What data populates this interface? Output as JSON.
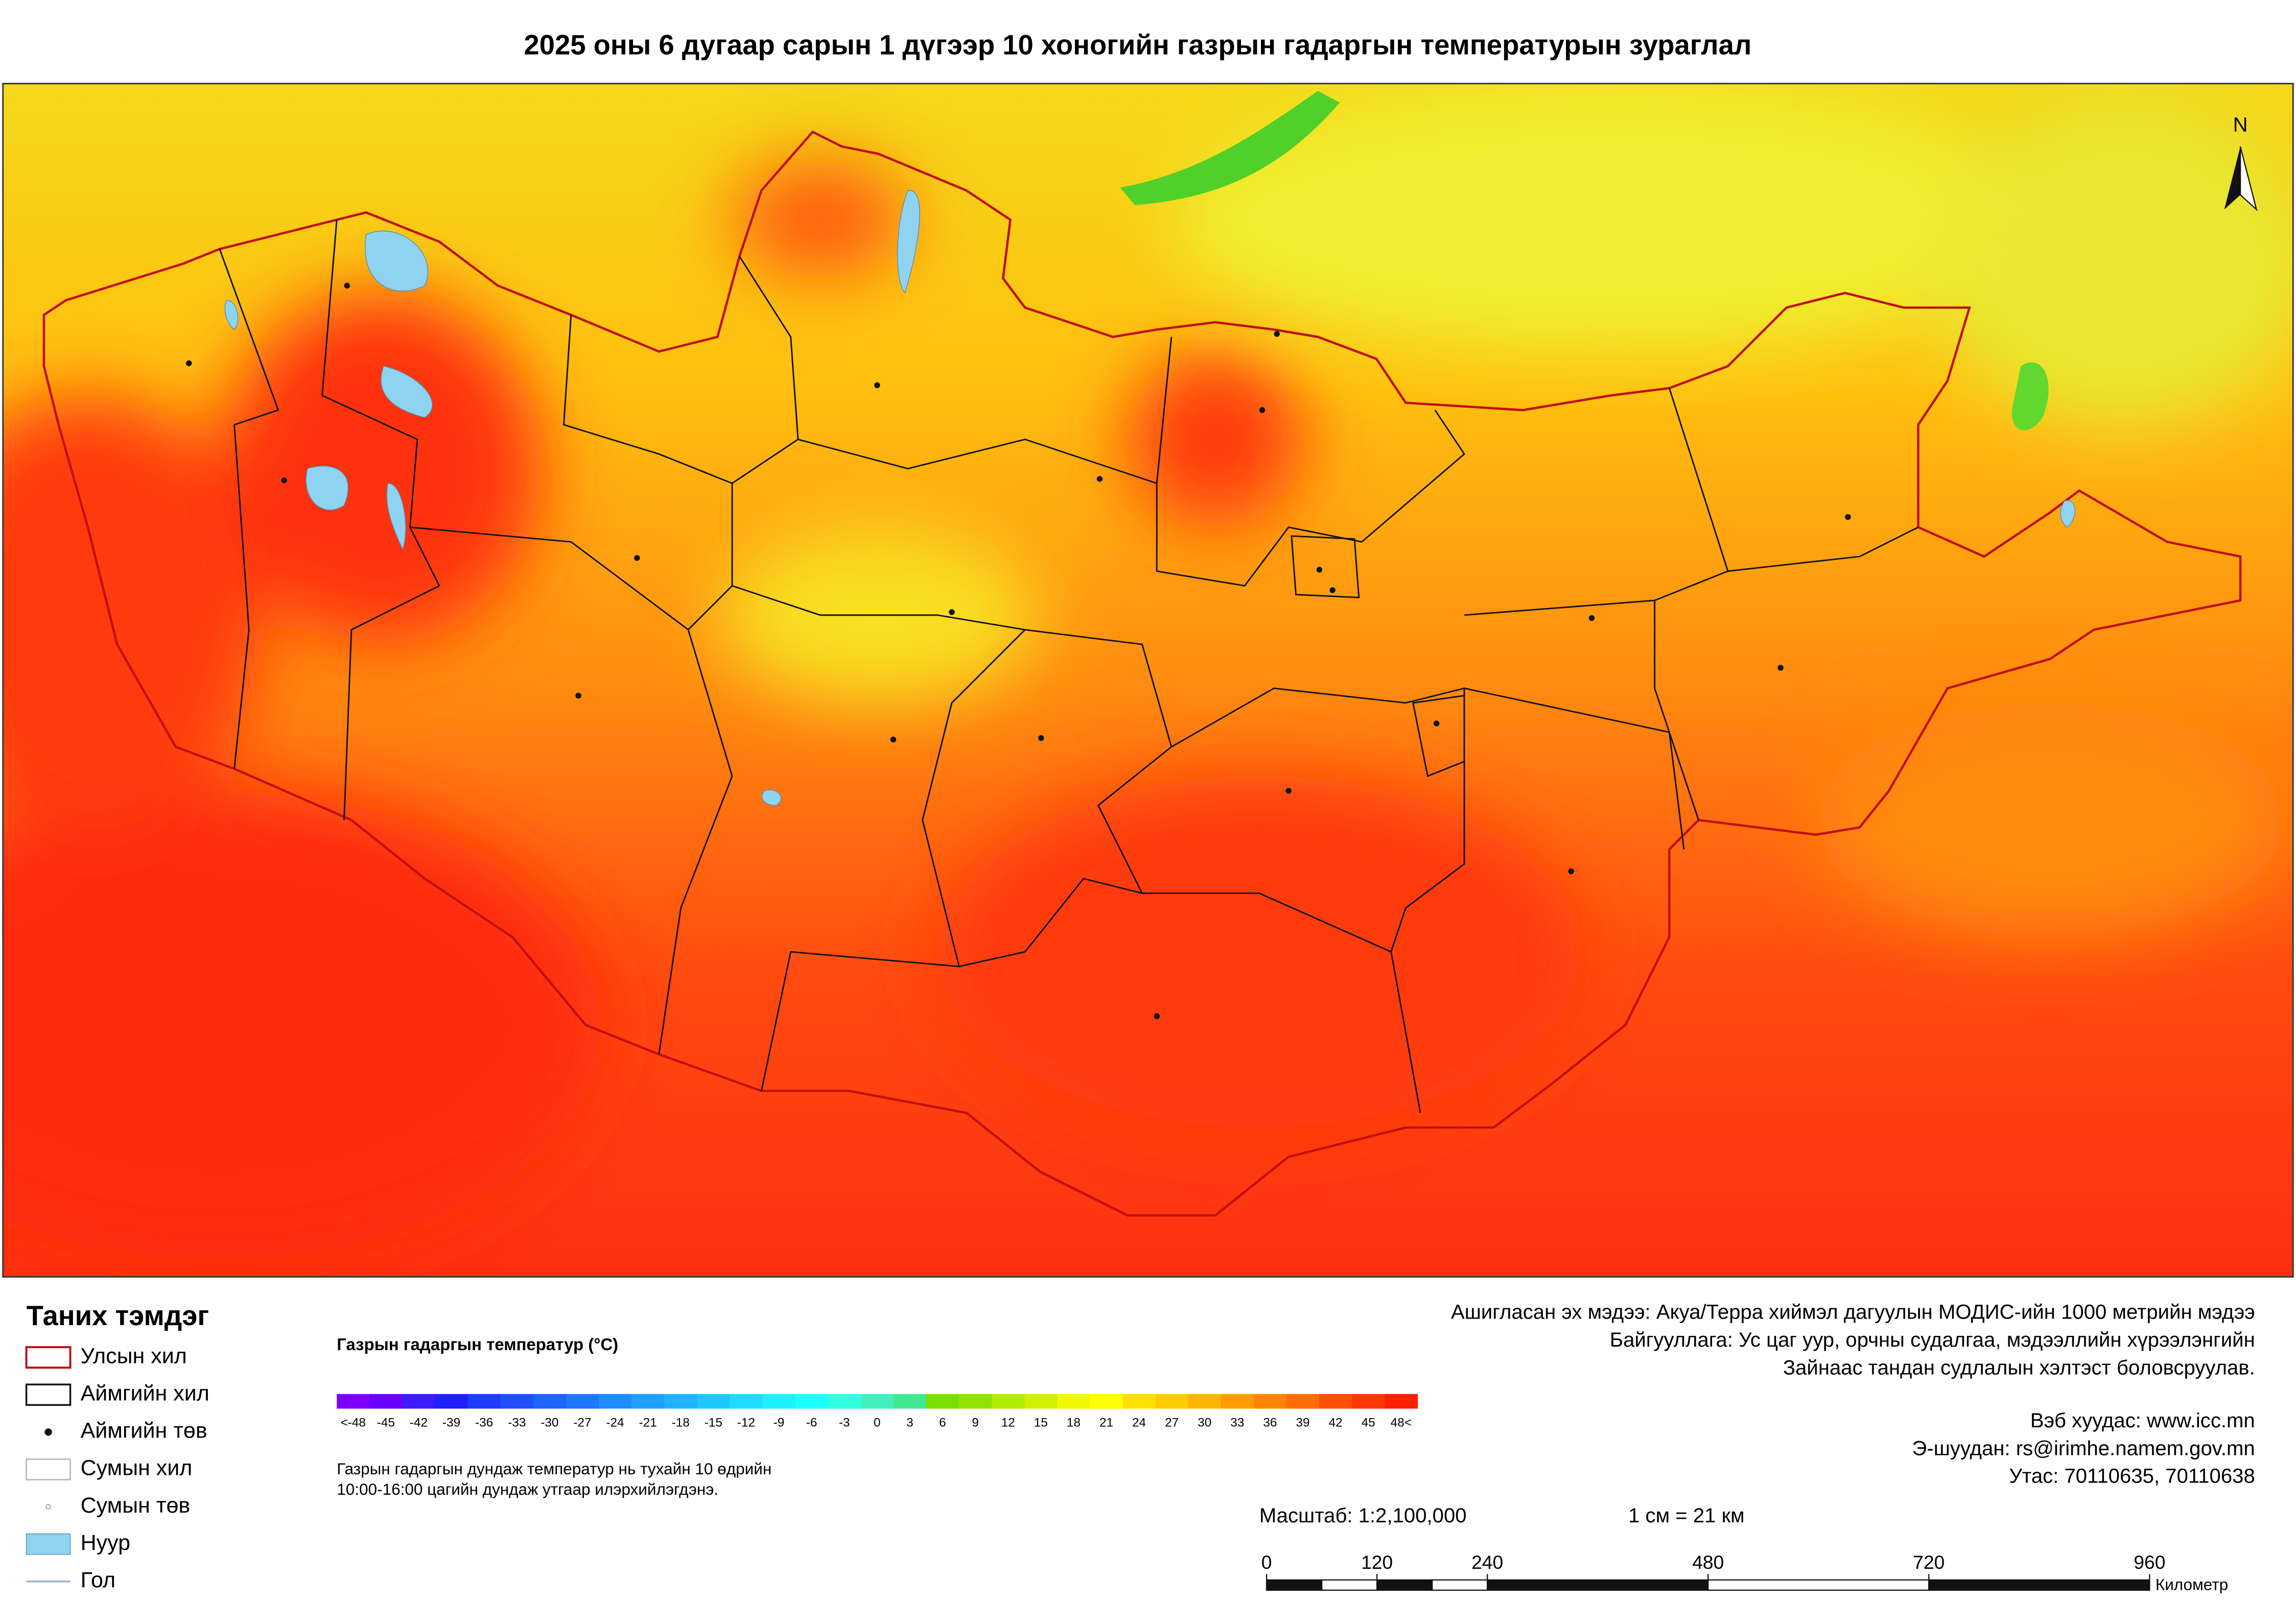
{
  "header": {
    "title": "2025 оны 6 дугаар сарын 1 дүгээр 10 хоногийн газрын гадаргын температурын зураглал"
  },
  "map": {
    "north": "N"
  },
  "legend": {
    "title": "Таних тэмдэг",
    "items": [
      "Улсын хил",
      "Аймгийн хил",
      "Аймгийн төв",
      "Сумын хил",
      "Сумын төв",
      "Нуур",
      "Гол"
    ]
  },
  "colorbar": {
    "title": "Газрын гадаргын температур (°C)",
    "labels": [
      "<-48",
      "-45",
      "-42",
      "-39",
      "-36",
      "-33",
      "-30",
      "-27",
      "-24",
      "-21",
      "-18",
      "-15",
      "-12",
      "-9",
      "-6",
      "-3",
      "0",
      "3",
      "6",
      "9",
      "12",
      "15",
      "18",
      "21",
      "24",
      "27",
      "30",
      "33",
      "36",
      "39",
      "42",
      "45",
      "48<"
    ],
    "colors": [
      "#8000ff",
      "#6a00ff",
      "#3c1cff",
      "#2020ff",
      "#1e3cff",
      "#1e50ff",
      "#1e64ff",
      "#1e78ff",
      "#1e8cff",
      "#1ea0ff",
      "#1eb4ff",
      "#1ec8ff",
      "#1edcff",
      "#1ef0ff",
      "#1effff",
      "#30ffe0",
      "#40f0c0",
      "#40e890",
      "#7ae000",
      "#90e400",
      "#b0ec00",
      "#d0f000",
      "#f0f800",
      "#ffff00",
      "#ffe000",
      "#ffcc00",
      "#ffb400",
      "#ff9c00",
      "#ff8400",
      "#ff6c00",
      "#ff5000",
      "#ff3800",
      "#ff2000"
    ],
    "note": [
      "Газрын гадаргын дундаж температур нь тухайн 10 өдрийн",
      "10:00-16:00 цагийн дундаж утгаар илэрхийлэгдэнэ."
    ]
  },
  "info": {
    "source": [
      "Ашигласан эх мэдээ: Акуа/Терра хиймэл дагуулын МОДИС-ийн 1000 метрийн мэдээ",
      "Байгууллага: Ус цаг уур, орчны судалгаа, мэдээллийн хүрээлэнгийн",
      "Зайнаас тандан судлалын хэлтэст боловсруулав."
    ],
    "contact": [
      "Вэб хуудас: www.icc.mn",
      "Э-шуудан: rs@irimhe.namem.gov.mn",
      "Утас: 70110635, 70110638"
    ]
  },
  "scale": {
    "ratio": "Масштаб: 1:2,100,000",
    "equivalence": "1 см = 21 км",
    "ticks": [
      0,
      120,
      240,
      480,
      720,
      960
    ],
    "unit": "Километр"
  }
}
